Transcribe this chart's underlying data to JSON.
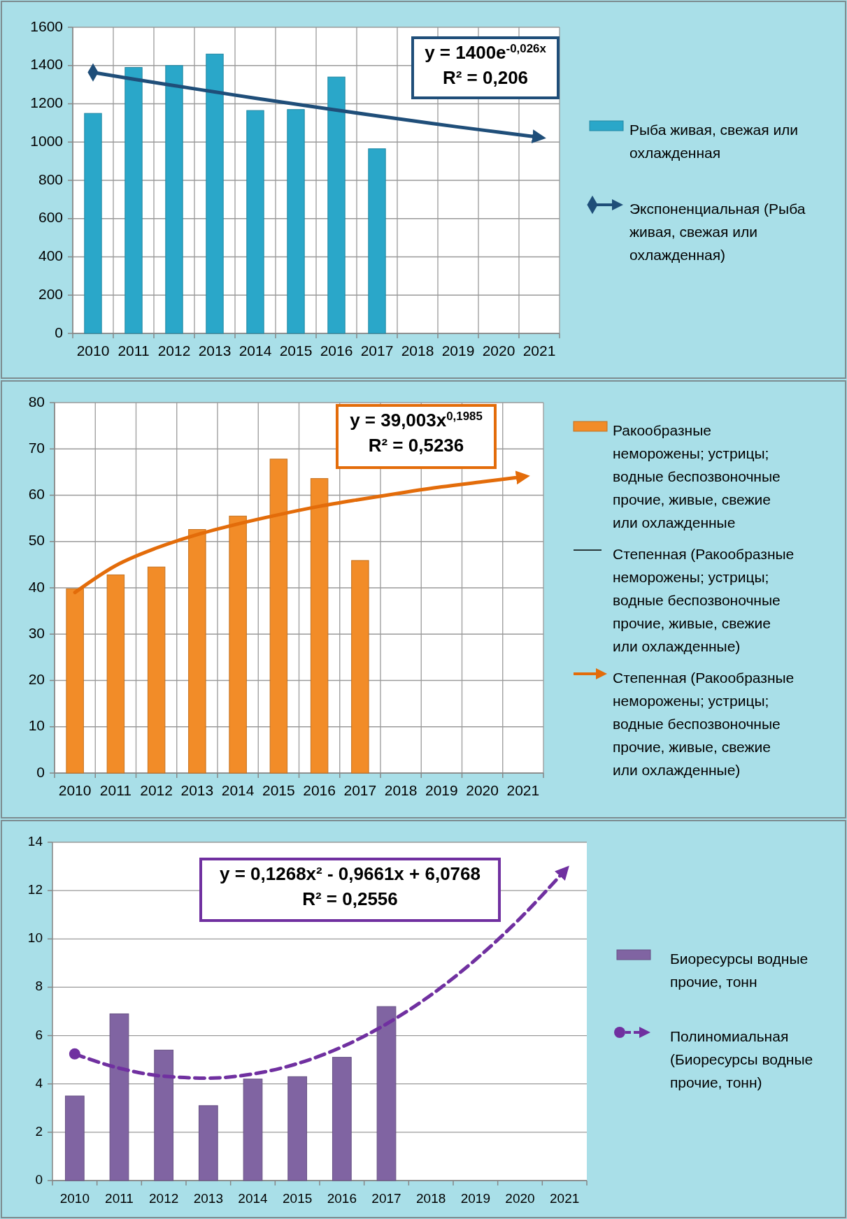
{
  "chart_data": [
    {
      "type": "bar",
      "categories": [
        "2010",
        "2011",
        "2012",
        "2013",
        "2014",
        "2015",
        "2016",
        "2017",
        "2018",
        "2019",
        "2020",
        "2021"
      ],
      "series": [
        {
          "name": "Рыба живая, свежая или охлажденная",
          "color": "#2aa7c9",
          "values": [
            1150,
            1390,
            1400,
            1460,
            1165,
            1170,
            1340,
            965,
            null,
            null,
            null,
            null
          ]
        },
        {
          "type": "line",
          "name": "Экспоненциальная (Рыба живая, свежая или охлажденная)",
          "color": "#1f4e79",
          "values": [
            1364,
            1329,
            1295,
            1262,
            1229,
            1198,
            1167,
            1137,
            1108,
            1079,
            1052,
            1025
          ]
        }
      ],
      "ylim": [
        0,
        1600
      ],
      "yticks": [
        0,
        200,
        400,
        600,
        800,
        1000,
        1200,
        1400,
        1600
      ],
      "grid": true,
      "legend": "right",
      "annotations": [
        "y = 1400e$^{-0,026x}$",
        "R² = 0,206"
      ]
    },
    {
      "type": "bar",
      "categories": [
        "2010",
        "2011",
        "2012",
        "2013",
        "2014",
        "2015",
        "2016",
        "2017",
        "2018",
        "2019",
        "2020",
        "2021"
      ],
      "series": [
        {
          "name": "Ракообразные неморожены; устрицы; водные беспозвоночные прочие, живые, свежие или охлажденные",
          "color": "#f28c28",
          "values": [
            39.8,
            42.8,
            44.5,
            52.6,
            55.5,
            67.8,
            63.6,
            45.9,
            null,
            null,
            null,
            null
          ]
        },
        {
          "type": "line",
          "name": "Степенная (Ракообразные неморожены; устрицы; водные беспозвоночные прочие, живые, свежие или охлажденные)",
          "color": "#000000",
          "values": [
            null,
            null,
            null,
            null,
            null,
            null,
            null,
            null,
            null,
            null,
            null,
            null
          ]
        },
        {
          "type": "line",
          "name": "Степенная (Ракообразные неморожены; устрицы; водные беспозвоночные прочие, живые, свежие или охлажденные)",
          "color": "#e36c0a",
          "values": [
            39.0,
            44.8,
            48.6,
            51.5,
            53.8,
            55.8,
            57.6,
            59.1,
            60.5,
            61.8,
            62.9,
            64.0
          ]
        }
      ],
      "ylim": [
        0,
        80
      ],
      "yticks": [
        0,
        10,
        20,
        30,
        40,
        50,
        60,
        70,
        80
      ],
      "grid": true,
      "legend": "right",
      "annotations": [
        "y = 39,003x$^{0,1985}$",
        "R² = 0,5236"
      ]
    },
    {
      "type": "bar",
      "categories": [
        "2010",
        "2011",
        "2012",
        "2013",
        "2014",
        "2015",
        "2016",
        "2017",
        "2018",
        "2019",
        "2020",
        "2021"
      ],
      "series": [
        {
          "name": "Биоресурсы водные прочие, тонн",
          "color": "#8064a2",
          "values": [
            3.5,
            6.9,
            5.4,
            3.1,
            4.2,
            4.3,
            5.1,
            7.2,
            null,
            null,
            null,
            null
          ]
        },
        {
          "type": "line",
          "name": "Полиномиальная (Биоресурсы водные прочие, тонн)",
          "color": "#7030a0",
          "line_style": "dashed",
          "values": [
            5.24,
            4.65,
            4.32,
            4.24,
            4.41,
            4.84,
            5.53,
            6.48,
            7.68,
            9.14,
            10.85,
            12.82
          ]
        }
      ],
      "ylim": [
        0,
        14
      ],
      "yticks": [
        0,
        2,
        4,
        6,
        8,
        10,
        12,
        14
      ],
      "grid": "y",
      "legend": "right",
      "annotations": [
        "y = 0,1268x² - 0,9661x + 6,0768",
        "R² = 0,2556"
      ]
    }
  ]
}
